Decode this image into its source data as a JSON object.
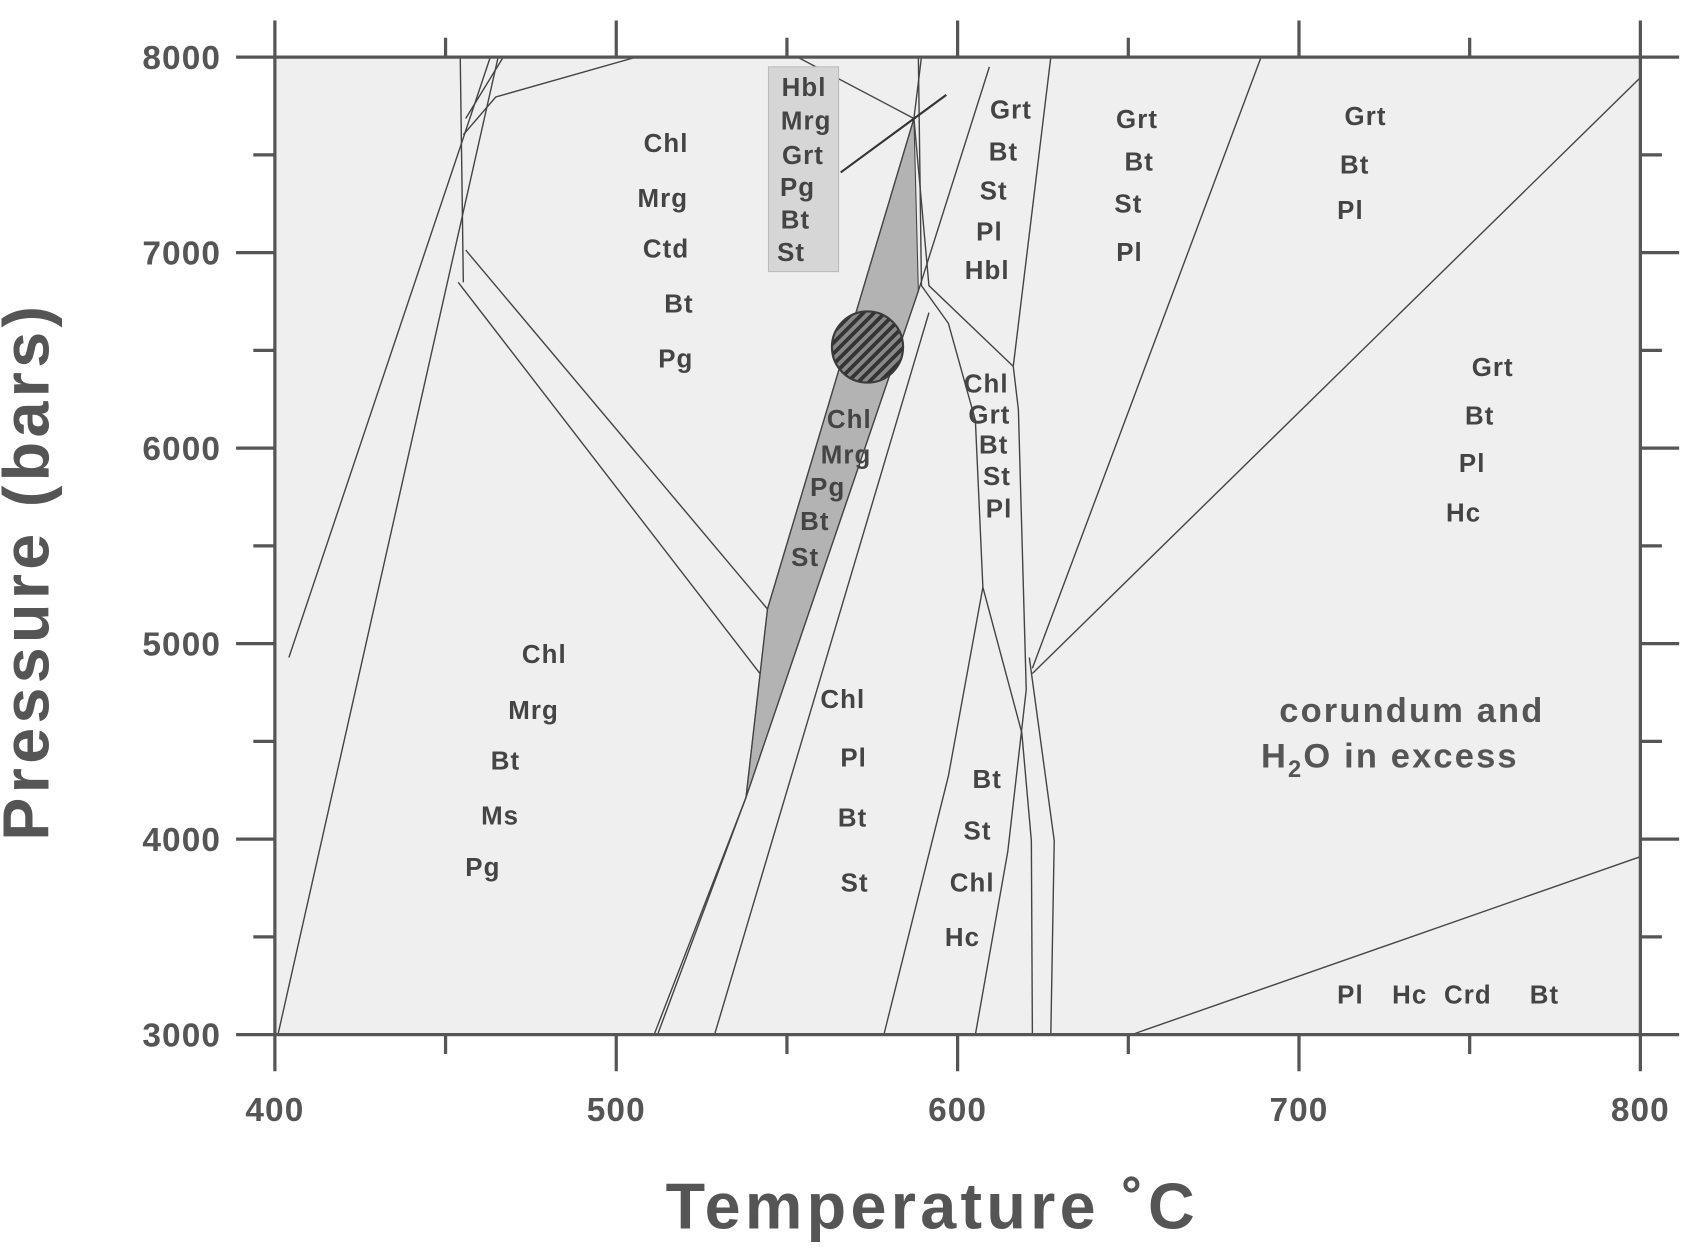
{
  "chart_data": {
    "type": "phase-diagram",
    "xlabel": "Temperature ˚C",
    "ylabel": "Pressure (bars)",
    "xlim": [
      400,
      800
    ],
    "ylim": [
      3000,
      8000
    ],
    "xticks": [
      400,
      500,
      600,
      700,
      800
    ],
    "yticks": [
      3000,
      4000,
      5000,
      6000,
      7000,
      8000
    ],
    "xminor": [
      450,
      550,
      650,
      750
    ],
    "yminor": [
      3500,
      4500,
      5500,
      6500,
      7500
    ],
    "background": "#efefef",
    "line_color": "#444444",
    "series": [
      {
        "x": [
          400.9,
          465.4
        ],
        "values": [
          3000,
          8000
        ]
      },
      {
        "x": [
          404.1,
          455.2,
          463.1
        ],
        "values": [
          4929,
          7587,
          8000
        ]
      },
      {
        "x": [
          454.3,
          455.2
        ],
        "values": [
          8000,
          6848
        ]
      },
      {
        "x": [
          455.9,
          544.3
        ],
        "values": [
          7013,
          5177
        ]
      },
      {
        "x": [
          453.7,
          542.1
        ],
        "values": [
          6848,
          4847
        ]
      },
      {
        "x": [
          455.2,
          464.7,
          505.8
        ],
        "values": [
          7603,
          7796,
          8000
        ]
      },
      {
        "x": [
          455.9,
          466.9
        ],
        "values": [
          7686,
          8000
        ]
      },
      {
        "x": [
          512.1,
          538,
          544.3,
          587.2,
          589.4
        ],
        "values": [
          3000,
          4213,
          5177,
          7686,
          8000
        ]
      },
      {
        "x": [
          511.1,
          538,
          588.5,
          609.3
        ],
        "values": [
          3000,
          4213,
          6804,
          7950
        ]
      },
      {
        "x": [
          528.8,
          591.6
        ],
        "values": [
          3000,
          6693
        ]
      },
      {
        "x": [
          578.4,
          597.3,
          607.4
        ],
        "values": [
          3000,
          4323,
          5288
        ]
      },
      {
        "x": [
          588.5,
          589.4,
          597.3,
          605.2,
          607.4,
          618.8,
          621.6,
          621.9
        ],
        "values": [
          8000,
          6831,
          6638,
          6142,
          5288,
          4544,
          3992,
          3000
        ]
      },
      {
        "x": [
          605.2,
          614.7,
          620.1,
          617.8,
          616.3
        ],
        "values": [
          3000,
          3937,
          4764,
          6197,
          6418
        ]
      },
      {
        "x": [
          616.3,
          627.3
        ],
        "values": [
          6418,
          8000
        ]
      },
      {
        "x": [
          616.3,
          591.6,
          587.2
        ],
        "values": [
          6418,
          6831,
          7686
        ]
      },
      {
        "x": [
          621.9,
          688.9
        ],
        "values": [
          4874,
          8000
        ]
      },
      {
        "x": [
          621.9,
          800
        ],
        "values": [
          4847,
          7895
        ]
      },
      {
        "x": [
          651,
          800
        ],
        "values": [
          3000,
          3910
        ]
      },
      {
        "x": [
          627.3,
          628.3,
          621
        ],
        "values": [
          3000,
          3992,
          4929
        ]
      },
      {
        "x": [
          553.1,
          587.2
        ],
        "values": [
          8000,
          7686
        ]
      }
    ],
    "regions": [
      {
        "x": [
          538,
          544.3,
          587.2,
          588.5
        ],
        "values": [
          4213,
          5177,
          7686,
          6804
        ],
        "color": "#b3b3b3"
      }
    ],
    "marker": {
      "x": 573.6,
      "y": 6517,
      "color": "#3a3a3a"
    },
    "fields": [
      [
        "Chl",
        "Mrg",
        "Ctd",
        "Bt",
        "Pg"
      ],
      [
        "Hbl",
        "Mrg",
        "Grt",
        "Pg",
        "Bt",
        "St"
      ],
      [
        "Grt",
        "Bt",
        "St",
        "Pl",
        "Hbl"
      ],
      [
        "Grt",
        "Bt",
        "St",
        "Pl"
      ],
      [
        "Grt",
        "Bt",
        "Pl"
      ],
      [
        "Chl",
        "Grt",
        "Bt",
        "St",
        "Pl"
      ],
      [
        "Chl",
        "Mrg",
        "Pg",
        "Bt",
        "St"
      ],
      [
        "Grt",
        "Bt",
        "Pl",
        "Hc"
      ],
      [
        "Chl",
        "Mrg",
        "Bt",
        "Ms",
        "Pg"
      ],
      [
        "Chl",
        "Pl",
        "Bt",
        "St"
      ],
      [
        "Bt",
        "St",
        "Chl",
        "Hc"
      ],
      [
        "Pl",
        "Hc",
        "Crd",
        "Bt"
      ]
    ],
    "annotation": {
      "line1": "corundum and",
      "line2": [
        "H",
        "2",
        "O in excess"
      ]
    }
  }
}
